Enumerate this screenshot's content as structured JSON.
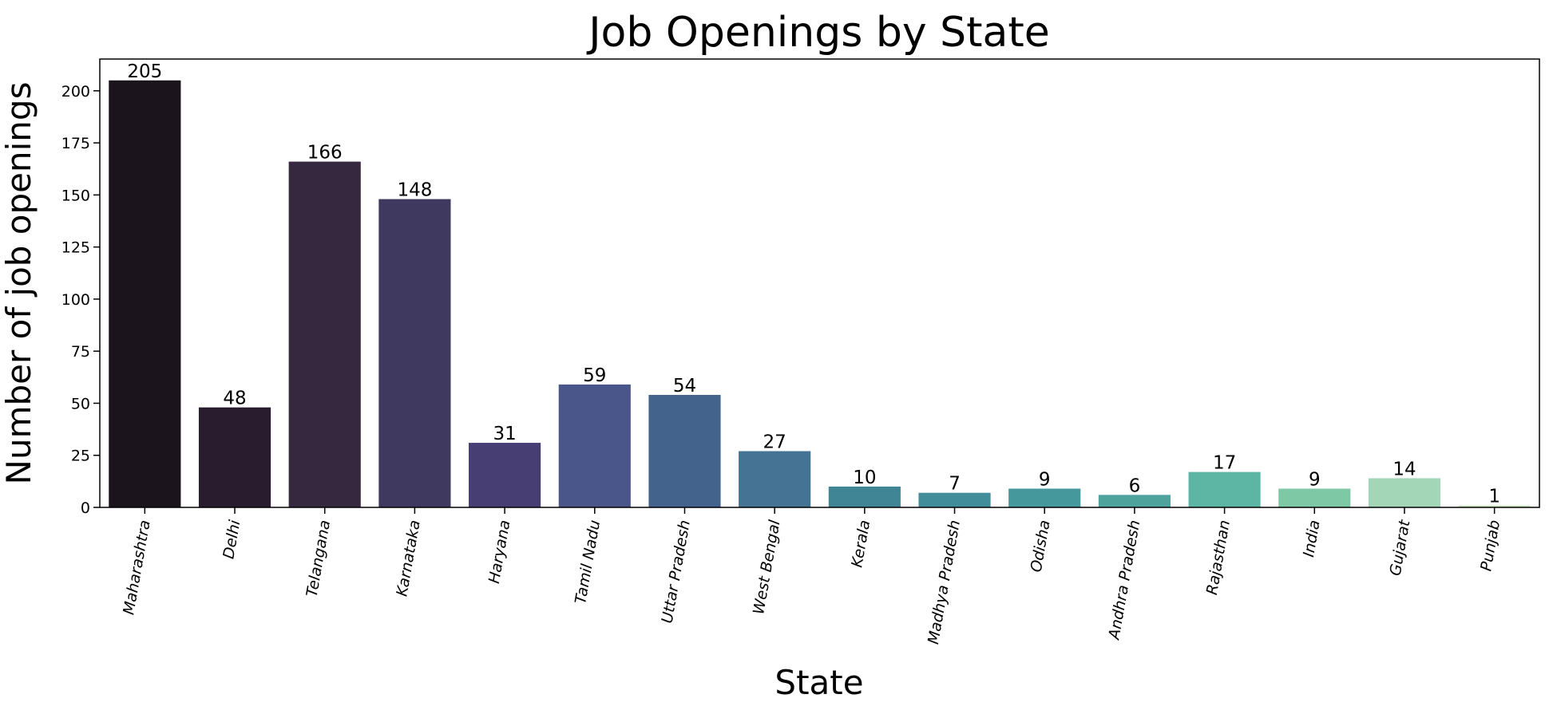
{
  "chart_data": {
    "type": "bar",
    "title": "Job Openings by State",
    "xlabel": "State",
    "ylabel": "Number of job openings",
    "categories": [
      "Maharashtra",
      "Delhi",
      "Telangana",
      "Karnataka",
      "Haryana",
      "Tamil Nadu",
      "Uttar Pradesh",
      "West Bengal",
      "Kerala",
      "Madhya Pradesh",
      "Odisha",
      "Andhra Pradesh",
      "Rajasthan",
      "India",
      "Gujarat",
      "Punjab"
    ],
    "values": [
      205,
      48,
      166,
      148,
      31,
      59,
      54,
      27,
      10,
      7,
      9,
      6,
      17,
      9,
      14,
      1
    ],
    "ylim": [
      0,
      215.25
    ],
    "yticks": [
      0,
      25,
      50,
      75,
      100,
      125,
      150,
      175,
      200
    ],
    "grid": false,
    "legend": "none",
    "colors": [
      "#1c141d",
      "#281c2e",
      "#36283f",
      "#3f385f",
      "#473e73",
      "#4a5589",
      "#44638c",
      "#447394",
      "#3f8595",
      "#428d9a",
      "#45989b",
      "#4ea39d",
      "#5db6a4",
      "#7ec8a6",
      "#a3d6b7",
      "#d3eac7"
    ]
  }
}
